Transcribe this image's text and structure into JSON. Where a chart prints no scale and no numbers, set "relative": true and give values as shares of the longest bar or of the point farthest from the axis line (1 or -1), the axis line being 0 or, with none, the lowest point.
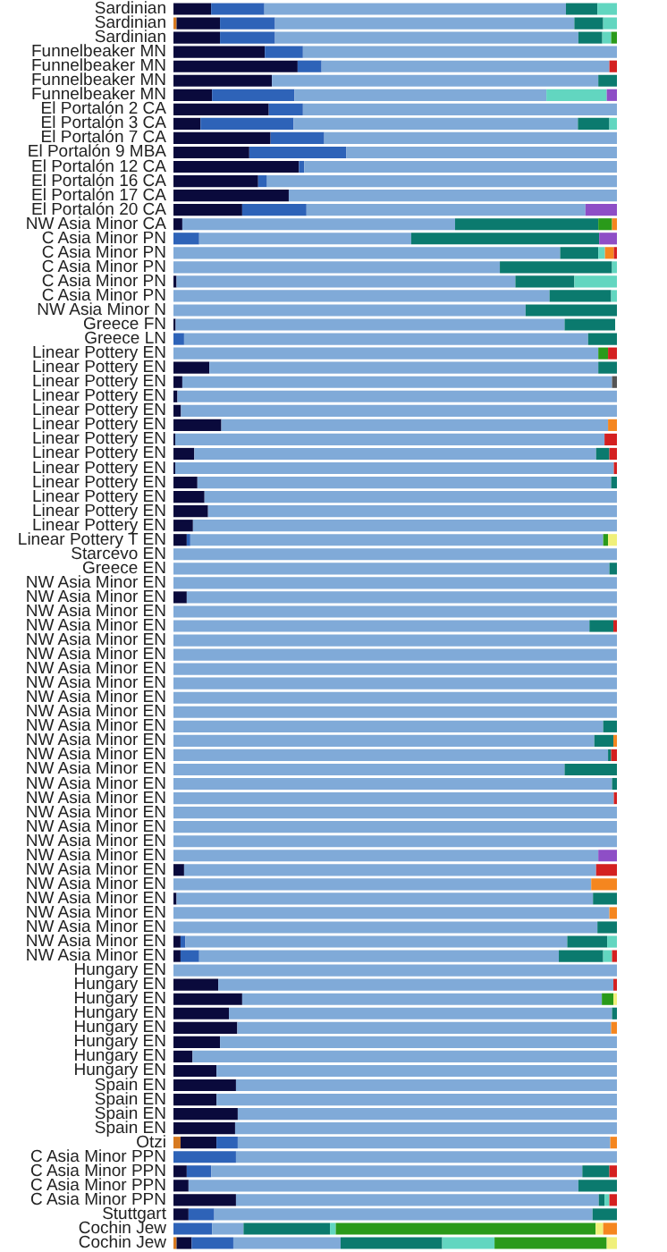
{
  "chart_data": {
    "type": "bar",
    "orientation": "horizontal",
    "stacked": true,
    "relative": true,
    "categories": [
      "Sardinian",
      "Sardinian",
      "Sardinian",
      "Funnelbeaker MN",
      "Funnelbeaker MN",
      "Funnelbeaker MN",
      "Funnelbeaker MN",
      "El Portalón 2 CA",
      "El Portalón 3 CA",
      "El Portalón 7 CA",
      "El Portalón 9 MBA",
      "El Portalón 12 CA",
      "El Portalón 16 CA",
      "El Portalón 17 CA",
      "El Portalón 20 CA",
      "NW Asia Minor CA",
      "C Asia Minor PN",
      "C Asia Minor PN",
      "C Asia Minor PN",
      "C Asia Minor PN",
      "C Asia Minor PN",
      "NW Asia Minor N",
      "Greece FN",
      "Greece LN",
      "Linear Pottery EN",
      "Linear Pottery EN",
      "Linear Pottery EN",
      "Linear Pottery EN",
      "Linear Pottery EN",
      "Linear Pottery EN",
      "Linear Pottery EN",
      "Linear Pottery EN",
      "Linear Pottery EN",
      "Linear Pottery EN",
      "Linear Pottery EN",
      "Linear Pottery EN",
      "Linear Pottery EN",
      "Linear Pottery T EN",
      "Starcevo EN",
      "Greece EN",
      "NW Asia Minor EN",
      "NW Asia Minor EN",
      "NW Asia Minor EN",
      "NW Asia Minor EN",
      "NW Asia Minor EN",
      "NW Asia Minor EN",
      "NW Asia Minor EN",
      "NW Asia Minor EN",
      "NW Asia Minor EN",
      "NW Asia Minor EN",
      "NW Asia Minor EN",
      "NW Asia Minor EN",
      "NW Asia Minor EN",
      "NW Asia Minor EN",
      "NW Asia Minor EN",
      "NW Asia Minor EN",
      "NW Asia Minor EN",
      "NW Asia Minor EN",
      "NW Asia Minor EN",
      "NW Asia Minor EN",
      "NW Asia Minor EN",
      "NW Asia Minor EN",
      "NW Asia Minor EN",
      "NW Asia Minor EN",
      "NW Asia Minor EN",
      "NW Asia Minor EN",
      "NW Asia Minor EN",
      "Hungary EN",
      "Hungary EN",
      "Hungary EN",
      "Hungary EN",
      "Hungary EN",
      "Hungary EN",
      "Hungary EN",
      "Hungary EN",
      "Spain EN",
      "Spain EN",
      "Spain EN",
      "Spain EN",
      "Otzi",
      "C Asia Minor PPN",
      "C Asia Minor PPN",
      "C Asia Minor PPN",
      "C Asia Minor PPN",
      "Stuttgart",
      "Cochin Jew",
      "Cochin Jew"
    ],
    "series": [
      {
        "color": "#d77a20",
        "values": [
          0,
          0.007,
          0,
          0,
          0,
          0,
          0,
          0,
          0,
          0,
          0,
          0,
          0,
          0,
          0,
          0,
          0,
          0,
          0,
          0,
          0,
          0,
          0,
          0,
          0,
          0,
          0,
          0,
          0,
          0,
          0,
          0,
          0,
          0,
          0,
          0,
          0,
          0,
          0,
          0,
          0,
          0,
          0,
          0,
          0,
          0,
          0,
          0,
          0,
          0,
          0,
          0,
          0,
          0,
          0,
          0,
          0,
          0,
          0,
          0,
          0,
          0,
          0,
          0,
          0,
          0,
          0,
          0,
          0,
          0,
          0,
          0,
          0,
          0,
          0,
          0,
          0,
          0,
          0,
          0.016,
          0,
          0,
          0,
          0,
          0,
          0,
          0.007
        ]
      },
      {
        "color": "#0a0a3c",
        "values": [
          0.085,
          0.098,
          0.105,
          0.206,
          0.28,
          0.222,
          0.087,
          0.215,
          0.061,
          0.219,
          0.171,
          0.283,
          0.191,
          0.26,
          0.155,
          0.02,
          0,
          0,
          0,
          0.007,
          0,
          0,
          0.005,
          0,
          0,
          0.081,
          0.02,
          0.009,
          0.017,
          0.108,
          0.004,
          0.047,
          0.004,
          0.054,
          0.07,
          0.078,
          0.044,
          0.03,
          0,
          0,
          0,
          0.03,
          0,
          0,
          0,
          0,
          0,
          0,
          0,
          0,
          0,
          0,
          0,
          0,
          0,
          0,
          0,
          0,
          0,
          0,
          0.024,
          0,
          0.007,
          0,
          0,
          0.016,
          0.016,
          0,
          0.101,
          0.155,
          0.125,
          0.144,
          0.105,
          0.043,
          0.097,
          0.141,
          0.097,
          0.145,
          0.139,
          0.081,
          0,
          0.03,
          0.034,
          0.141,
          0.034,
          0,
          0.034
        ]
      },
      {
        "color": "#2e63b8",
        "values": [
          0.12,
          0.124,
          0.124,
          0.086,
          0.054,
          0,
          0.186,
          0.077,
          0.21,
          0.121,
          0.219,
          0.012,
          0.02,
          0,
          0.145,
          0,
          0.058,
          0,
          0,
          0,
          0,
          0,
          0,
          0.024,
          0,
          0,
          0,
          0,
          0,
          0,
          0,
          0,
          0,
          0,
          0,
          0,
          0,
          0.008,
          0,
          0,
          0,
          0,
          0,
          0,
          0,
          0,
          0,
          0,
          0,
          0,
          0,
          0,
          0,
          0,
          0,
          0,
          0,
          0,
          0,
          0,
          0,
          0,
          0,
          0,
          0,
          0.011,
          0.042,
          0,
          0,
          0,
          0,
          0,
          0,
          0,
          0,
          0,
          0,
          0,
          0,
          0.048,
          0.141,
          0.055,
          0,
          0,
          0.058,
          0.087,
          0.094
        ]
      },
      {
        "color": "#80aad8",
        "values": [
          0.68,
          0.675,
          0.684,
          0.708,
          0.649,
          0.736,
          0.568,
          0.708,
          0.641,
          0.66,
          0.61,
          0.705,
          0.789,
          0.74,
          0.629,
          0.615,
          0.478,
          0.872,
          0.736,
          0.764,
          0.848,
          0.794,
          0.877,
          0.911,
          0.958,
          0.877,
          0.969,
          0.991,
          0.983,
          0.872,
          0.968,
          0.906,
          0.989,
          0.933,
          0.93,
          0.922,
          0.956,
          0.931,
          1,
          0.983,
          1,
          0.97,
          1,
          0.938,
          1,
          1,
          1,
          1,
          1,
          1,
          0.969,
          0.949,
          0.98,
          0.882,
          0.989,
          0.993,
          1,
          1,
          1,
          0.958,
          0.929,
          0.942,
          0.939,
          0.983,
          0.956,
          0.861,
          0.811,
          1,
          0.891,
          0.811,
          0.864,
          0.843,
          0.895,
          0.957,
          0.903,
          0.859,
          0.903,
          0.855,
          0.861,
          0.84,
          0.859,
          0.837,
          0.879,
          0.818,
          0.853,
          0.071,
          0.242
        ]
      },
      {
        "color": "#0b7a6e",
        "values": [
          0.071,
          0.065,
          0.054,
          0,
          0,
          0.042,
          0,
          0,
          0.071,
          0,
          0,
          0,
          0,
          0,
          0,
          0.323,
          0.424,
          0.086,
          0.253,
          0.133,
          0.139,
          0.206,
          0.114,
          0.065,
          0,
          0.042,
          0,
          0,
          0,
          0,
          0,
          0.03,
          0,
          0.013,
          0,
          0,
          0,
          0,
          0,
          0.017,
          0,
          0,
          0,
          0.054,
          0,
          0,
          0,
          0,
          0,
          0,
          0.031,
          0.043,
          0.007,
          0.118,
          0.011,
          0,
          0,
          0,
          0,
          0,
          0,
          0,
          0.054,
          0,
          0.044,
          0.09,
          0.1,
          0,
          0,
          0,
          0.011,
          0,
          0,
          0,
          0,
          0,
          0,
          0,
          0,
          0,
          0,
          0.061,
          0.087,
          0.013,
          0.055,
          0.195,
          0.229
        ]
      },
      {
        "color": "#62d6c0",
        "values": [
          0.044,
          0.031,
          0.02,
          0,
          0,
          0,
          0.136,
          0,
          0.017,
          0,
          0,
          0,
          0,
          0,
          0,
          0,
          0,
          0.015,
          0.011,
          0.096,
          0.013,
          0,
          null,
          0,
          0,
          0,
          0,
          0,
          0,
          0,
          0,
          0,
          0,
          0,
          0,
          0,
          0,
          0,
          0,
          0,
          0,
          0,
          0,
          0,
          0,
          0,
          0,
          0,
          0,
          0,
          0,
          0,
          0,
          0,
          0,
          0,
          0,
          0,
          0,
          0,
          0,
          0,
          0,
          0,
          0,
          0.022,
          0.02,
          0,
          0,
          0,
          0,
          0,
          0,
          0,
          0,
          0,
          0,
          0,
          0,
          0,
          0,
          0,
          0,
          0.011,
          0,
          0.013,
          0.118
        ]
      },
      {
        "color": "#2a9a1a",
        "values": [
          0,
          0,
          0.013,
          0,
          0,
          0,
          0,
          0,
          0,
          0,
          0,
          0,
          0,
          0,
          0,
          0.031,
          0,
          0,
          0,
          0,
          0,
          0,
          0,
          0,
          0.022,
          0,
          0,
          0,
          0,
          0,
          0,
          0,
          0,
          0,
          0,
          0,
          0,
          0.011,
          0,
          0,
          0,
          0,
          0,
          0,
          0,
          0,
          0,
          0,
          0,
          0,
          0,
          0,
          0,
          0,
          0,
          0,
          0,
          0,
          0,
          0,
          0,
          0,
          0,
          0,
          0,
          0,
          0,
          0,
          0,
          0.026,
          0,
          0,
          0,
          0,
          0,
          0,
          0,
          0,
          0,
          0,
          0,
          0,
          0,
          0,
          0,
          0.586,
          0.253
        ]
      },
      {
        "color": "#f0f07a",
        "values": [
          0,
          0,
          0,
          0,
          0,
          0,
          0,
          0,
          0,
          0,
          0,
          0,
          0,
          0,
          0,
          0,
          0,
          0,
          0,
          0,
          0,
          0,
          0,
          0,
          0,
          0,
          0,
          0,
          0,
          0,
          0,
          0,
          0,
          0,
          0,
          0,
          0,
          0.02,
          0,
          0,
          0,
          0,
          0,
          0,
          0,
          0,
          0,
          0,
          0,
          0,
          0,
          0,
          0,
          0,
          0,
          0,
          0,
          0,
          0,
          0,
          0,
          0,
          0,
          0,
          0,
          0,
          0,
          0,
          0,
          0.008,
          0,
          0,
          0,
          0,
          0,
          0,
          0,
          0,
          0,
          0,
          0,
          0,
          0,
          0,
          0,
          0.017,
          0.023
        ]
      },
      {
        "color": "#8e4ec6",
        "values": [
          0,
          0,
          0,
          0,
          0,
          0,
          0.023,
          0,
          0,
          0,
          0,
          0,
          0,
          0,
          0.071,
          0,
          0.04,
          0,
          0,
          0,
          0,
          0,
          0,
          0,
          0,
          0,
          0,
          0,
          0,
          0,
          0,
          0,
          0,
          0,
          0,
          0,
          0,
          0,
          0,
          0,
          0,
          0,
          0,
          0,
          0,
          0,
          0,
          0,
          0,
          0,
          0,
          0,
          0,
          0,
          0,
          0,
          0,
          0,
          0,
          0.042,
          0,
          0,
          0,
          0,
          0,
          0,
          0,
          0,
          0,
          0,
          0,
          0,
          0,
          0,
          0,
          0,
          0,
          0,
          0,
          0,
          0,
          0,
          0,
          0,
          0,
          0,
          0
        ]
      },
      {
        "color": "#f5861f",
        "values": [
          0,
          0,
          0,
          0,
          0,
          0,
          0,
          0,
          0,
          0,
          0,
          0,
          0,
          0,
          0,
          0.011,
          0,
          0.02,
          0,
          0,
          0,
          0,
          0,
          0,
          0,
          0,
          0,
          0,
          0,
          0.02,
          0,
          0,
          0,
          0,
          0,
          0,
          0,
          0,
          0,
          0,
          0,
          0,
          0,
          0,
          0,
          0,
          0,
          0,
          0,
          0,
          0,
          0.008,
          0,
          0,
          0,
          0,
          0,
          0,
          0,
          0,
          0,
          0.058,
          0,
          0.017,
          0,
          0,
          0,
          0,
          0,
          0,
          0,
          0.013,
          0,
          0,
          0,
          0,
          0,
          0,
          0,
          0.015,
          0,
          0,
          0,
          0,
          0,
          0.031,
          0
        ]
      },
      {
        "color": "#d42020",
        "values": [
          0,
          0,
          0,
          0,
          0.017,
          0,
          0,
          0,
          0,
          0,
          0,
          0,
          0,
          0,
          0,
          0,
          0,
          0.007,
          0,
          0,
          0,
          0,
          0,
          0,
          0.02,
          0,
          0,
          0,
          0,
          0,
          0.028,
          0.017,
          0.007,
          0,
          0,
          0,
          0,
          0,
          0,
          0,
          0,
          0,
          0,
          0.008,
          0,
          0,
          0,
          0,
          0,
          0,
          0,
          0,
          0.013,
          0,
          0,
          0.007,
          0,
          0,
          0,
          0,
          0.047,
          0,
          0,
          0,
          0,
          0,
          0.011,
          0,
          0.008,
          0,
          0,
          0,
          0,
          0,
          0,
          0,
          0,
          0,
          0,
          0,
          0,
          0.017,
          0,
          0.017,
          0,
          0,
          0
        ]
      },
      {
        "color": "#555555",
        "values": [
          0,
          0,
          0,
          0,
          0,
          0,
          0,
          0,
          0,
          0,
          0,
          0,
          0,
          0,
          0,
          0,
          0,
          0,
          0,
          0,
          0,
          0,
          0,
          0,
          0,
          0,
          0.011,
          0,
          0,
          0,
          0,
          0,
          0,
          0,
          0,
          0,
          0,
          0,
          0,
          0,
          0,
          0,
          0,
          0,
          0,
          0,
          0,
          0,
          0,
          0,
          0,
          0,
          0,
          0,
          0,
          0,
          0,
          0,
          0,
          0,
          0,
          0,
          0,
          0,
          0,
          0,
          0,
          0,
          0,
          0,
          0,
          0,
          0,
          0,
          0,
          0,
          0,
          0,
          0,
          0,
          0,
          0,
          0,
          0,
          0,
          0,
          0
        ]
      }
    ]
  }
}
